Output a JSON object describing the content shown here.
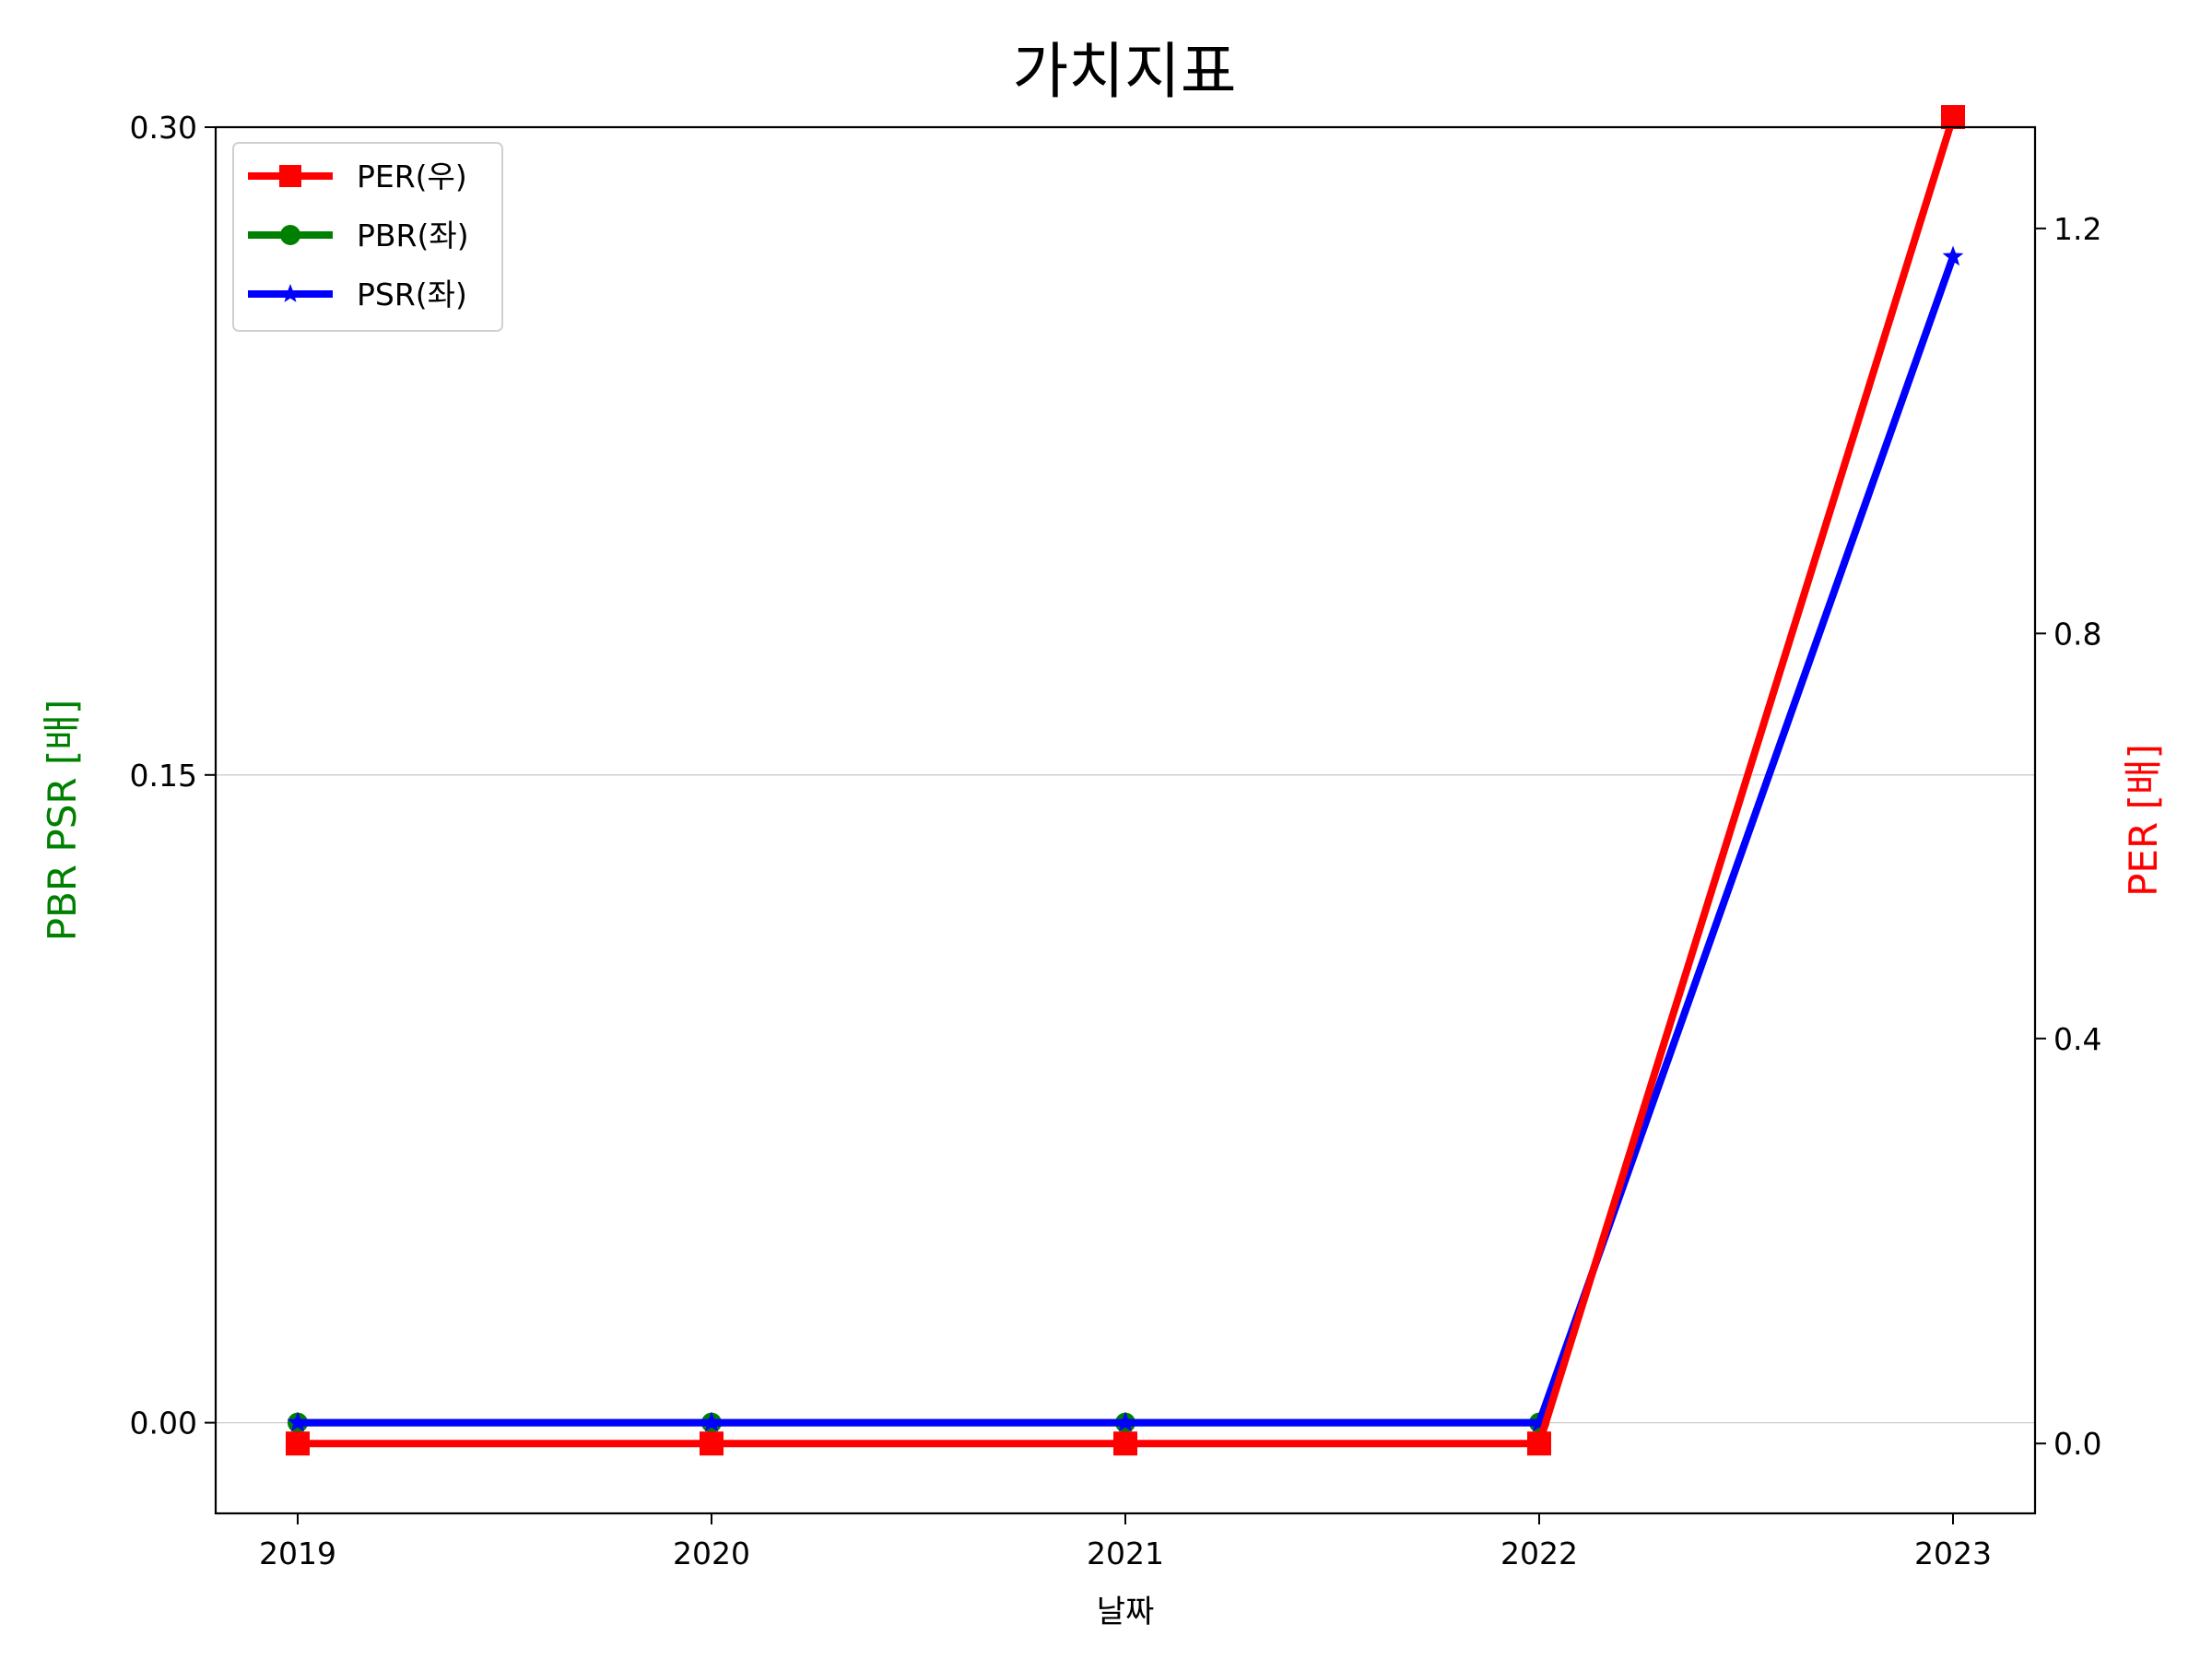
{
  "chart_data": {
    "type": "line",
    "title": "가치지표",
    "xlabel": "날짜",
    "ylabel_left": "PBR PSR [배]",
    "ylabel_right": "PER [배]",
    "categories": [
      "2019",
      "2020",
      "2021",
      "2022",
      "2023"
    ],
    "left_axis": {
      "range": [
        -0.021,
        0.3
      ]
    },
    "right_axis": {
      "range": [
        -0.069,
        1.3
      ]
    },
    "left_ticks": [
      "0.00",
      "0.15",
      "0.30"
    ],
    "right_ticks": [
      "0.0",
      "0.4",
      "0.8",
      "1.2"
    ],
    "grid": "horizontal",
    "legend_position": "top-left",
    "series": [
      {
        "name": "PER(우)",
        "axis": "right",
        "color": "#ff0000",
        "marker": "square",
        "values": [
          0,
          0,
          0,
          0,
          1.31
        ]
      },
      {
        "name": "PBR(좌)",
        "axis": "left",
        "color": "#008000",
        "marker": "circle",
        "values": [
          0,
          0,
          0,
          0,
          null
        ]
      },
      {
        "name": "PSR(좌)",
        "axis": "left",
        "color": "#0000ff",
        "marker": "star",
        "values": [
          0,
          0,
          0,
          0,
          0.27
        ]
      }
    ]
  }
}
